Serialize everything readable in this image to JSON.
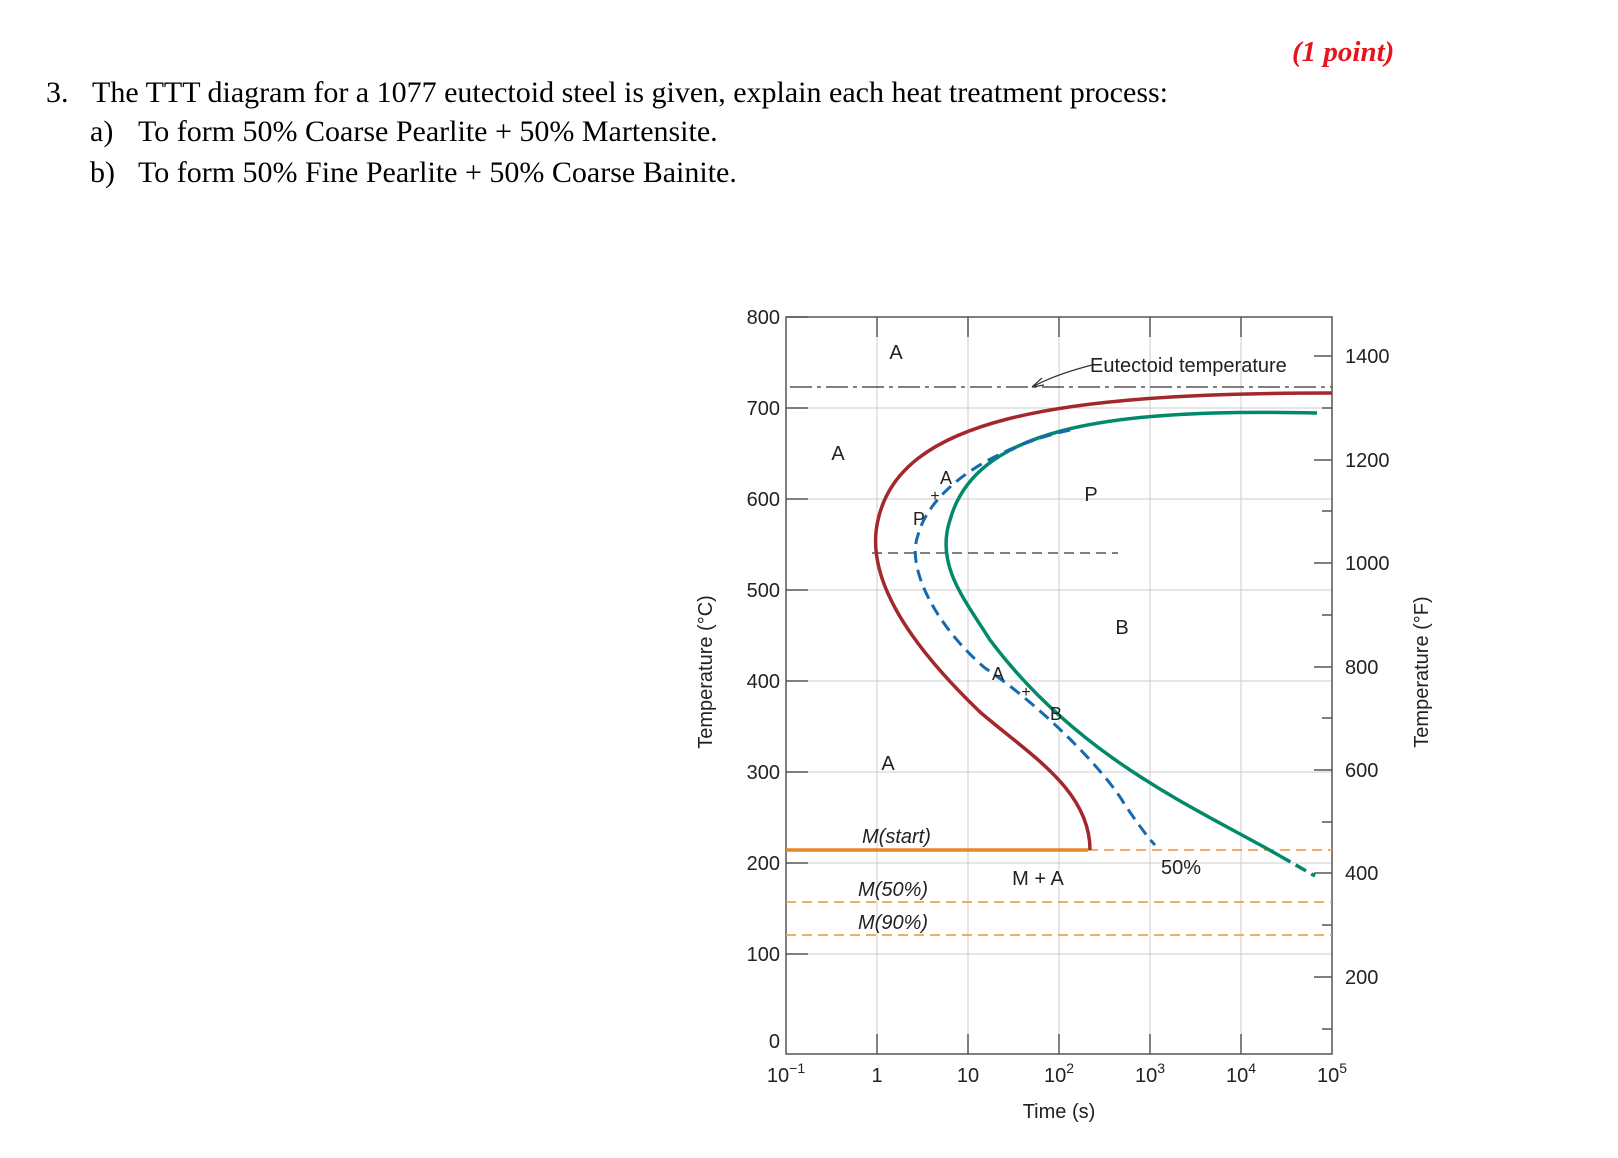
{
  "header": {
    "points": "(1 point)"
  },
  "question": {
    "number": "3.",
    "text": "The TTT diagram for a 1077 eutectoid steel is given, explain each heat treatment process:",
    "parts": [
      {
        "label": "a)",
        "text": "To form 50% Coarse Pearlite + 50% Martensite."
      },
      {
        "label": "b)",
        "text": "To form 50% Fine Pearlite + 50% Coarse Bainite."
      }
    ]
  },
  "diagram": {
    "y_label_left": "Temperature (°C)",
    "y_label_right": "Temperature (°F)",
    "x_label": "Time (s)",
    "y_ticks_c": [
      "0",
      "100",
      "200",
      "300",
      "400",
      "500",
      "600",
      "700",
      "800"
    ],
    "y_ticks_f": [
      "200",
      "400",
      "600",
      "800",
      "1000",
      "1200",
      "1400"
    ],
    "x_ticks": [
      {
        "base": "10",
        "exp": "−1"
      },
      {
        "base": "1",
        "exp": ""
      },
      {
        "base": "10",
        "exp": ""
      },
      {
        "base": "10",
        "exp": "2"
      },
      {
        "base": "10",
        "exp": "3"
      },
      {
        "base": "10",
        "exp": "4"
      },
      {
        "base": "10",
        "exp": "5"
      }
    ],
    "labels": {
      "eutectoid": "Eutectoid temperature",
      "a_top": "A",
      "a_left": "A",
      "a_low": "A",
      "a_curve1": "A",
      "plus1": "+",
      "p_curve": "P",
      "p_region": "P",
      "b_region": "B",
      "a_curve2": "A",
      "plus2": "+",
      "b_curve": "B",
      "m_start": "M(start)",
      "m_50": "M(50%)",
      "m_90": "M(90%)",
      "m_plus_a": "M + A",
      "fifty_pct": "50%"
    },
    "colors": {
      "start_curve": "#a3282c",
      "finish_curve": "#008a6a",
      "fifty_curve": "#1469b0",
      "martensite": "#e8862c",
      "eutectoid_line": "#555555",
      "grid": "#cccccc"
    }
  }
}
